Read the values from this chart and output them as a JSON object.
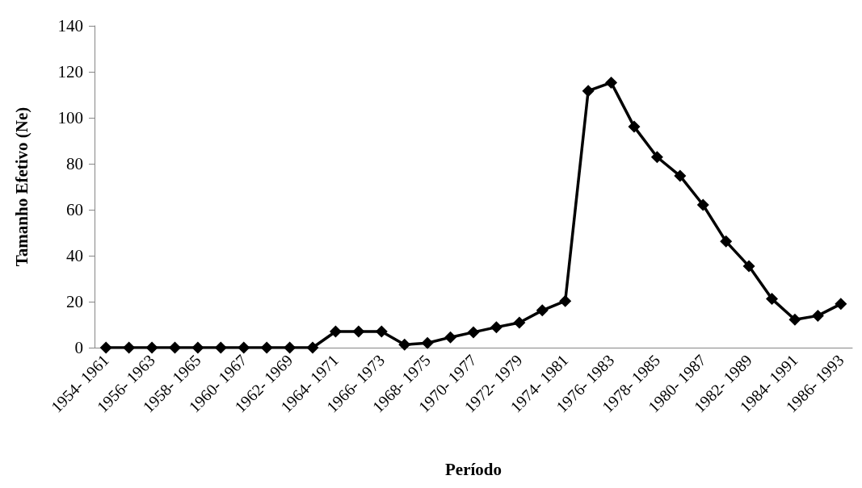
{
  "chart_data": {
    "type": "line",
    "xlabel": "Período",
    "ylabel": "Tamanho Efetivo (Ne)",
    "categories": [
      "1954- 1961",
      null,
      "1956- 1963",
      null,
      "1958- 1965",
      null,
      "1960- 1967",
      null,
      "1962- 1969",
      null,
      "1964- 1971",
      null,
      "1966- 1973",
      null,
      "1968- 1975",
      null,
      "1970- 1977",
      null,
      "1972- 1979",
      null,
      "1974- 1981",
      null,
      "1976- 1983",
      null,
      "1978- 1985",
      null,
      "1980- 1987",
      null,
      "1982- 1989",
      null,
      "1984- 1991",
      null,
      "1986- 1993"
    ],
    "series": [
      {
        "color": "#000000",
        "values": [
          0,
          0,
          0,
          0,
          0,
          0,
          0,
          0,
          0,
          0,
          7,
          7,
          7,
          1.3,
          2,
          4.5,
          6.7,
          8.9,
          10.9,
          16.2,
          20.3,
          111.7,
          115.3,
          96.1,
          82.9,
          74.7,
          62.1,
          46.2,
          35.4,
          21.2,
          12.2,
          13.9,
          19
        ]
      }
    ],
    "ylim": [
      0,
      140
    ],
    "yticks": [
      0,
      20,
      40,
      60,
      80,
      100,
      120,
      140
    ],
    "grid": false,
    "marker": "diamond",
    "line_style": "solid"
  }
}
